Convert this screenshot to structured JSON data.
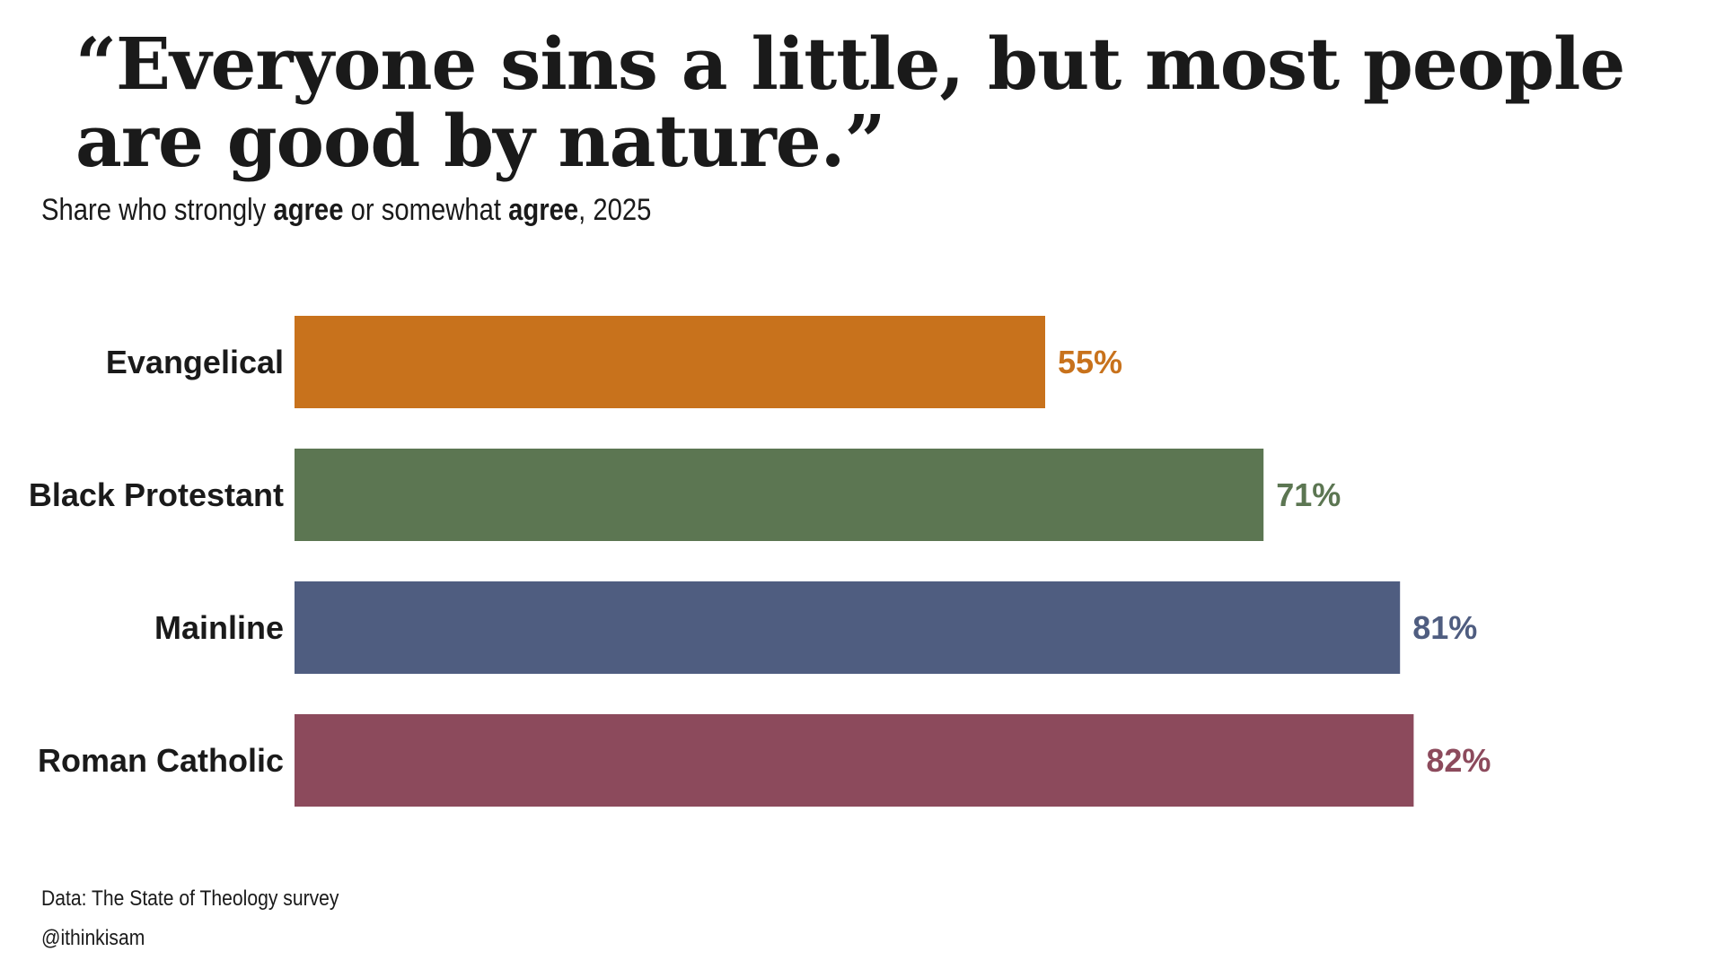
{
  "chart_data": {
    "type": "bar",
    "orientation": "horizontal",
    "title": "“Everyone sins a little, but most people are good by nature.”",
    "subtitle": {
      "parts": [
        {
          "text": "Share who strongly ",
          "bold": false
        },
        {
          "text": "agree",
          "bold": true
        },
        {
          "text": " or somewhat ",
          "bold": false
        },
        {
          "text": "agree",
          "bold": true
        },
        {
          "text": ", 2025",
          "bold": false
        }
      ]
    },
    "categories": [
      "Evangelical",
      "Black Protestant",
      "Mainline",
      "Roman Catholic"
    ],
    "values": [
      55,
      71,
      81,
      82
    ],
    "value_labels": [
      "55%",
      "71%",
      "81%",
      "82%"
    ],
    "colors": [
      "#c8721c",
      "#5c7652",
      "#4f5d80",
      "#8c4a5c"
    ],
    "xlim": [
      0,
      100
    ],
    "grid": false,
    "legend": "none"
  },
  "footer": {
    "source": "Data: The State of Theology survey",
    "credit": "@ithinkisam"
  }
}
